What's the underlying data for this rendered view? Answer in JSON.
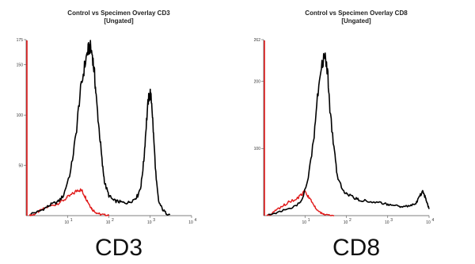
{
  "chart_data": [
    {
      "type": "line",
      "title": "Control vs Specimen Overlay CD3",
      "subtitle": "[Ungated]",
      "xlabel": "CD3",
      "ylabel": "",
      "x_scale": "log",
      "xlim": [
        1,
        10000
      ],
      "ylim": [
        0,
        175
      ],
      "y_ticks": [
        {
          "value": 50,
          "label": "50"
        },
        {
          "value": 100,
          "label": "100"
        },
        {
          "value": 150,
          "label": "150"
        },
        {
          "value": 175,
          "label": "175"
        }
      ],
      "x_ticks": [
        {
          "value": 10,
          "label": "10"
        },
        {
          "value": 100,
          "label": "10"
        },
        {
          "value": 1000,
          "label": "10"
        },
        {
          "value": 10000,
          "label": "10"
        }
      ],
      "x_tick_exponents": [
        "1",
        "2",
        "3",
        "4"
      ],
      "series": [
        {
          "color": "#000000",
          "x": [
            1.3,
            2,
            3,
            4,
            6,
            8,
            12,
            16,
            20,
            25,
            30,
            35,
            40,
            45,
            50,
            60,
            70,
            80,
            100,
            130,
            170,
            220,
            300,
            400,
            500,
            600,
            700,
            800,
            900,
            1000,
            1100,
            1200,
            1400,
            1600,
            2000,
            2500,
            3000
          ],
          "y": [
            2,
            4,
            8,
            11,
            14,
            20,
            45,
            80,
            120,
            145,
            162,
            168,
            160,
            140,
            115,
            80,
            50,
            32,
            20,
            15,
            14,
            13,
            13,
            16,
            20,
            30,
            55,
            90,
            115,
            122,
            110,
            80,
            35,
            14,
            6,
            2,
            1
          ]
        },
        {
          "color": "#e01818",
          "x": [
            1.2,
            1.5,
            2,
            3,
            5,
            7,
            10,
            14,
            18,
            22,
            26,
            30,
            35,
            40,
            50,
            60,
            80,
            100
          ],
          "y": [
            0,
            1,
            4,
            8,
            11,
            14,
            18,
            22,
            26,
            25,
            20,
            15,
            10,
            6,
            3,
            1.5,
            0.5,
            0
          ]
        }
      ]
    },
    {
      "type": "line",
      "title": "Control vs Specimen Overlay CD8",
      "subtitle": "[Ungated]",
      "xlabel": "CD8",
      "ylabel": "",
      "x_scale": "log",
      "xlim": [
        1,
        10000
      ],
      "ylim": [
        0,
        262
      ],
      "y_ticks": [
        {
          "value": 100,
          "label": "100"
        },
        {
          "value": 200,
          "label": "200"
        },
        {
          "value": 262,
          "label": "262"
        }
      ],
      "x_ticks": [
        {
          "value": 10,
          "label": "10"
        },
        {
          "value": 100,
          "label": "10"
        },
        {
          "value": 1000,
          "label": "10"
        },
        {
          "value": 10000,
          "label": "10"
        }
      ],
      "x_tick_exponents": [
        "1",
        "2",
        "3",
        "4"
      ],
      "series": [
        {
          "color": "#000000",
          "x": [
            1.3,
            2,
            3,
            5,
            8,
            12,
            16,
            20,
            25,
            30,
            35,
            40,
            50,
            60,
            80,
            100,
            150,
            200,
            300,
            500,
            800,
            1000,
            1500,
            2000,
            3000,
            4000,
            5000,
            6000,
            7000,
            8000,
            9000,
            10000
          ],
          "y": [
            2,
            4,
            8,
            12,
            20,
            55,
            110,
            175,
            225,
            240,
            215,
            160,
            100,
            60,
            40,
            32,
            27,
            24,
            22,
            20,
            18,
            17,
            15,
            14,
            14,
            16,
            20,
            30,
            35,
            28,
            18,
            10
          ]
        },
        {
          "color": "#e01818",
          "x": [
            1.2,
            1.5,
            2,
            3,
            4,
            6,
            8,
            10,
            12,
            15,
            18,
            22,
            26,
            30,
            40,
            50
          ],
          "y": [
            0,
            2,
            8,
            15,
            20,
            24,
            30,
            36,
            28,
            20,
            12,
            6,
            3,
            1.5,
            0.5,
            0
          ]
        }
      ]
    }
  ]
}
